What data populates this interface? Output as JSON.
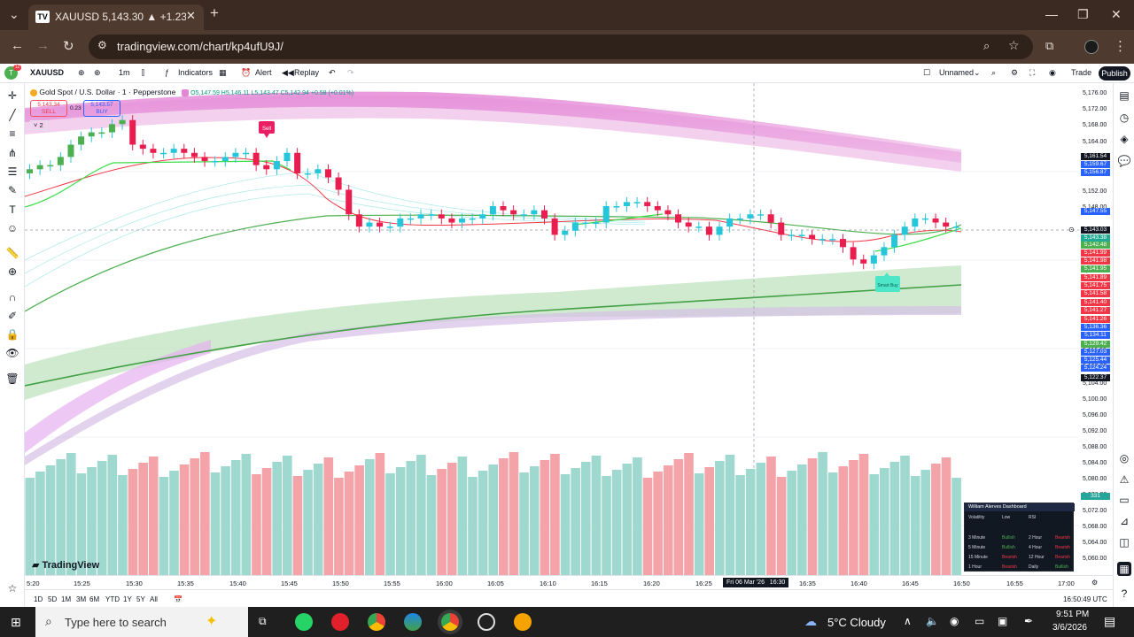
{
  "browser": {
    "tab_title": "XAUUSD 5,143.30 ▲ +1.23% Ur",
    "url": "tradingview.com/chart/kp4ufU9J/"
  },
  "toolbar": {
    "avatar_badge": "12",
    "symbol": "XAUUSD",
    "interval": "1m",
    "indicators": "Indicators",
    "alert": "Alert",
    "replay": "Replay",
    "layout_name": "Unnamed",
    "trade": "Trade",
    "publish": "Publish"
  },
  "legend": {
    "title": "Gold Spot / U.S. Dollar · 1 · Pepperstone",
    "ohlc": "O5,147.59 H5,146.11 L5,143.47 C5,142.94 +0.58 (+0.01%)",
    "sell_price": "5,143.34",
    "sell_label": "SELL",
    "spread": "0.23",
    "buy_price": "5,143.57",
    "buy_label": "BUY",
    "indicator_count": "2"
  },
  "chart_markers": {
    "sell": "Sell",
    "smart_buy": "Smart Buy"
  },
  "price_axis": {
    "labels": [
      "5,176.00",
      "5,172.00",
      "5,168.00",
      "5,164.00",
      "5,156.00",
      "5,152.00",
      "5,148.00",
      "5,140.00",
      "5,136.00",
      "5,132.00",
      "5,128.00",
      "5,124.00",
      "5,120.00",
      "5,116.00",
      "5,112.00",
      "5,108.00",
      "5,104.00",
      "5,100.00",
      "5,096.00",
      "5,092.00",
      "5,088.00",
      "5,084.00",
      "5,080.00",
      "5,076.00",
      "5,072.00",
      "5,068.00",
      "5,064.00",
      "5,060.00"
    ],
    "tags": [
      {
        "v": "5,161.54",
        "c": "#131722"
      },
      {
        "v": "5,159.67",
        "c": "#2962ff"
      },
      {
        "v": "5,156.87",
        "c": "#2962ff"
      },
      {
        "v": "5,147.55",
        "c": "#2962ff"
      },
      {
        "v": "5,143.03",
        "c": "#131722"
      },
      {
        "v": "5,143.38",
        "c": "#22ab94"
      },
      {
        "v": "5,142.48",
        "c": "#4caf50"
      },
      {
        "v": "5,141.99",
        "c": "#f23645"
      },
      {
        "v": "5,141.98",
        "c": "#f23645"
      },
      {
        "v": "5,141.95",
        "c": "#4caf50"
      },
      {
        "v": "5,141.89",
        "c": "#f23645"
      },
      {
        "v": "5,141.75",
        "c": "#f23645"
      },
      {
        "v": "5,141.58",
        "c": "#f23645"
      },
      {
        "v": "5,141.40",
        "c": "#f23645"
      },
      {
        "v": "5,141.27",
        "c": "#f23645"
      },
      {
        "v": "5,141.26",
        "c": "#f23645"
      },
      {
        "v": "5,136.36",
        "c": "#2962ff"
      },
      {
        "v": "5,134.11",
        "c": "#2962ff"
      },
      {
        "v": "5,129.42",
        "c": "#4caf50"
      },
      {
        "v": "5,127.03",
        "c": "#2962ff"
      },
      {
        "v": "5,125.44",
        "c": "#2962ff"
      },
      {
        "v": "5,124.24",
        "c": "#2962ff"
      },
      {
        "v": "5,122.37",
        "c": "#131722"
      }
    ],
    "volume_tag": "331"
  },
  "time_axis": {
    "labels": [
      "5:20",
      "15:25",
      "15:30",
      "15:35",
      "15:40",
      "15:45",
      "15:50",
      "15:55",
      "16:00",
      "16:05",
      "16:10",
      "16:15",
      "16:20",
      "16:25",
      "16:35",
      "16:40",
      "16:45",
      "16:50",
      "16:55",
      "17:00"
    ],
    "crosshair_label": "Fri 06 Mar '26   16:30"
  },
  "bottom_bar": {
    "ranges": [
      "1D",
      "5D",
      "1M",
      "3M",
      "6M",
      "YTD",
      "1Y",
      "5Y",
      "All"
    ],
    "clock": "16:50:49 UTC"
  },
  "watermark": "TradingView",
  "dashboard": {
    "title": "William Alerves Dashboard",
    "row0": [
      "Volatility",
      "Low",
      "RSI"
    ],
    "rows": [
      [
        "3 Minute",
        "Bullish",
        "2 Hour",
        "Bearish"
      ],
      [
        "5 Minute",
        "Bullish",
        "4 Hour",
        "Bearish"
      ],
      [
        "15 Minute",
        "Bearish",
        "12 Hour",
        "Bearish"
      ],
      [
        "1 Hour",
        "Bearish",
        "Daily",
        "Bullish"
      ]
    ]
  },
  "taskbar": {
    "search_placeholder": "Type here to search",
    "weather": "5°C  Cloudy",
    "time": "9:51 PM",
    "date": "3/6/2026"
  },
  "chart_data": {
    "type": "candlestick",
    "x": [
      "15:20",
      "15:21",
      "15:22",
      "15:23",
      "15:24",
      "15:25",
      "15:26",
      "15:27",
      "15:28",
      "15:29",
      "15:30",
      "15:31",
      "15:32",
      "15:33",
      "15:34",
      "15:35",
      "15:36",
      "15:37",
      "15:38",
      "15:39",
      "15:40",
      "15:41",
      "15:42",
      "15:43",
      "15:44",
      "15:45",
      "15:46",
      "15:47",
      "15:48",
      "15:49",
      "15:50",
      "15:51",
      "15:52",
      "15:53",
      "15:54",
      "15:55",
      "15:56",
      "15:57",
      "15:58",
      "15:59",
      "16:00",
      "16:01",
      "16:02",
      "16:03",
      "16:04",
      "16:05",
      "16:06",
      "16:07",
      "16:08",
      "16:09",
      "16:10",
      "16:11",
      "16:12",
      "16:13",
      "16:14",
      "16:15",
      "16:16",
      "16:17",
      "16:18",
      "16:19",
      "16:20",
      "16:21",
      "16:22",
      "16:23",
      "16:24",
      "16:25",
      "16:26",
      "16:27",
      "16:28",
      "16:29",
      "16:30",
      "16:31",
      "16:32",
      "16:33",
      "16:34",
      "16:35",
      "16:36",
      "16:37",
      "16:38",
      "16:39",
      "16:40",
      "16:41",
      "16:42",
      "16:43",
      "16:44",
      "16:45",
      "16:46",
      "16:47",
      "16:48",
      "16:49",
      "16:50"
    ],
    "close": [
      5157,
      5158,
      5158,
      5160,
      5163,
      5165,
      5166,
      5166,
      5168,
      5169,
      5163,
      5162,
      5161,
      5161,
      5162,
      5161,
      5160,
      5159,
      5159,
      5160,
      5161,
      5161,
      5158,
      5157,
      5159,
      5161,
      5156,
      5156,
      5157,
      5155,
      5152,
      5146,
      5143,
      5144,
      5143,
      5143,
      5145,
      5145,
      5146,
      5146,
      5145,
      5144,
      5145,
      5145,
      5146,
      5148,
      5147,
      5146,
      5146,
      5147,
      5145,
      5141,
      5142,
      5144,
      5144,
      5144,
      5148,
      5148,
      5149,
      5149,
      5148,
      5147,
      5146,
      5144,
      5143,
      5143,
      5141,
      5143,
      5145,
      5145,
      5146,
      5146,
      5144,
      5141,
      5141,
      5141,
      5140,
      5140,
      5140,
      5138,
      5135,
      5134,
      5136,
      5138,
      5141,
      5143,
      5145,
      5145,
      5144,
      5143,
      5143
    ],
    "ylim": [
      5058,
      5178
    ]
  }
}
